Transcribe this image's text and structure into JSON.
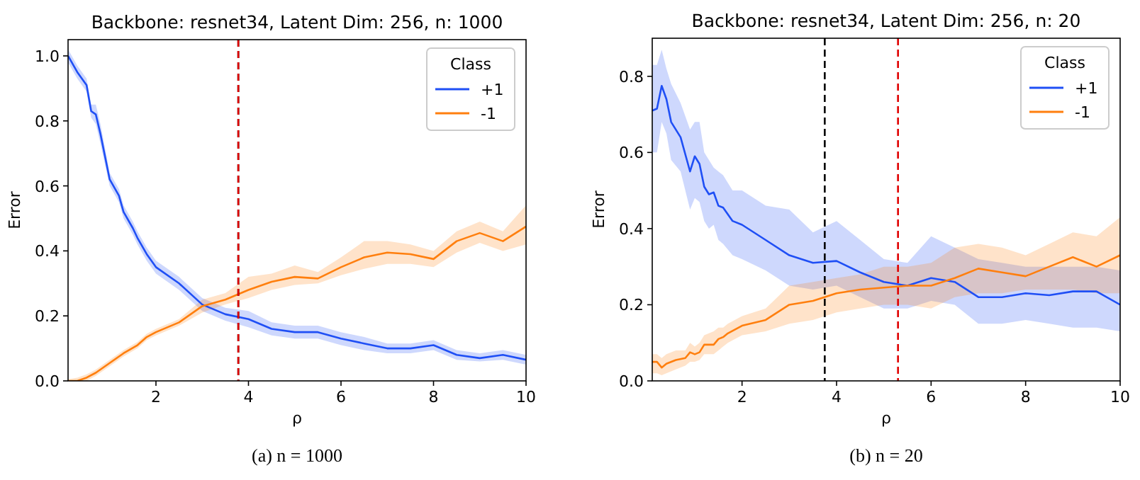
{
  "chart_data": [
    {
      "type": "line",
      "title": "Backbone: resnet34, Latent Dim: 256, n: 1000",
      "xlabel": "ρ",
      "ylabel": "Error",
      "legend_title": "Class",
      "legend": "top right",
      "xlim": [
        0.1,
        10
      ],
      "xticks": [
        2,
        4,
        6,
        8,
        10
      ],
      "ylim": [
        0,
        1.05
      ],
      "yticks": [
        {
          "value": 0,
          "label": "0.0"
        },
        {
          "value": 0.2,
          "label": "0.2"
        },
        {
          "value": 0.4,
          "label": "0.4"
        },
        {
          "value": 0.6,
          "label": "0.6"
        },
        {
          "value": 0.8,
          "label": "0.8"
        },
        {
          "value": 1,
          "label": "1.0"
        }
      ],
      "grid": false,
      "ref_lines": [
        {
          "axis": "x",
          "value": 3.78,
          "color": "#000000",
          "line_style": "dashed"
        },
        {
          "axis": "x",
          "value": 3.78,
          "color": "#e00000",
          "line_style": "dashed"
        }
      ],
      "annotations": [
        "(a) n = 1000"
      ],
      "series": [
        {
          "name": "+1",
          "color": "#1f4ff5",
          "x": [
            0.1,
            0.3,
            0.5,
            0.6,
            0.7,
            0.8,
            1.0,
            1.2,
            1.3,
            1.5,
            1.6,
            1.8,
            2.0,
            2.5,
            3.0,
            3.5,
            4.0,
            4.5,
            5,
            5.5,
            6,
            6.5,
            7,
            7.5,
            8,
            8.5,
            9,
            9.5,
            10
          ],
          "values": [
            1.0,
            0.95,
            0.91,
            0.83,
            0.82,
            0.76,
            0.62,
            0.57,
            0.52,
            0.47,
            0.44,
            0.39,
            0.35,
            0.3,
            0.235,
            0.205,
            0.19,
            0.16,
            0.15,
            0.15,
            0.13,
            0.115,
            0.1,
            0.1,
            0.11,
            0.08,
            0.07,
            0.08,
            0.065
          ],
          "lower": [
            0.98,
            0.93,
            0.89,
            0.81,
            0.79,
            0.73,
            0.6,
            0.55,
            0.5,
            0.45,
            0.42,
            0.37,
            0.33,
            0.28,
            0.215,
            0.185,
            0.165,
            0.14,
            0.13,
            0.13,
            0.11,
            0.095,
            0.085,
            0.085,
            0.095,
            0.065,
            0.06,
            0.065,
            0.05
          ],
          "upper": [
            1.02,
            0.97,
            0.93,
            0.85,
            0.85,
            0.79,
            0.64,
            0.59,
            0.54,
            0.49,
            0.46,
            0.41,
            0.37,
            0.32,
            0.255,
            0.225,
            0.215,
            0.18,
            0.17,
            0.17,
            0.15,
            0.135,
            0.115,
            0.115,
            0.125,
            0.095,
            0.085,
            0.095,
            0.08
          ]
        },
        {
          "name": "-1",
          "color": "#ff7f0e",
          "x": [
            0.1,
            0.3,
            0.5,
            0.7,
            1.0,
            1.3,
            1.6,
            1.8,
            2.0,
            2.5,
            3.0,
            3.5,
            4.0,
            4.5,
            5,
            5.5,
            6,
            6.5,
            7,
            7.5,
            8,
            8.5,
            9,
            9.5,
            10
          ],
          "values": [
            0,
            0,
            0.01,
            0.025,
            0.055,
            0.085,
            0.11,
            0.135,
            0.15,
            0.18,
            0.23,
            0.25,
            0.28,
            0.305,
            0.32,
            0.315,
            0.35,
            0.38,
            0.395,
            0.39,
            0.375,
            0.43,
            0.455,
            0.43,
            0.475
          ],
          "lower": [
            0,
            0,
            0,
            0.015,
            0.045,
            0.075,
            0.1,
            0.125,
            0.14,
            0.17,
            0.21,
            0.235,
            0.255,
            0.28,
            0.295,
            0.3,
            0.325,
            0.345,
            0.36,
            0.36,
            0.35,
            0.395,
            0.425,
            0.4,
            0.42
          ],
          "upper": [
            0.005,
            0.01,
            0.02,
            0.035,
            0.065,
            0.095,
            0.12,
            0.145,
            0.16,
            0.19,
            0.25,
            0.27,
            0.32,
            0.33,
            0.355,
            0.335,
            0.38,
            0.43,
            0.43,
            0.42,
            0.4,
            0.46,
            0.49,
            0.46,
            0.54
          ]
        }
      ]
    },
    {
      "type": "line",
      "title": "Backbone: resnet34, Latent Dim: 256, n: 20",
      "xlabel": "ρ",
      "ylabel": "Error",
      "legend_title": "Class",
      "legend": "top right",
      "xlim": [
        0.1,
        10
      ],
      "xticks": [
        2,
        4,
        6,
        8,
        10
      ],
      "ylim": [
        0,
        0.9
      ],
      "yticks": [
        {
          "value": 0,
          "label": "0.0"
        },
        {
          "value": 0.2,
          "label": "0.2"
        },
        {
          "value": 0.4,
          "label": "0.4"
        },
        {
          "value": 0.6,
          "label": "0.6"
        },
        {
          "value": 0.8,
          "label": "0.8"
        }
      ],
      "grid": false,
      "ref_lines": [
        {
          "axis": "x",
          "value": 3.75,
          "color": "#000000",
          "line_style": "dashed"
        },
        {
          "axis": "x",
          "value": 5.3,
          "color": "#e00000",
          "line_style": "dashed"
        }
      ],
      "annotations": [
        "(b) n = 20"
      ],
      "series": [
        {
          "name": "+1",
          "color": "#1f4ff5",
          "x": [
            0.1,
            0.2,
            0.3,
            0.4,
            0.5,
            0.7,
            0.9,
            1.0,
            1.1,
            1.2,
            1.3,
            1.4,
            1.5,
            1.6,
            1.8,
            2.0,
            2.5,
            3.0,
            3.5,
            4.0,
            4.5,
            5,
            5.5,
            6,
            6.5,
            7,
            7.5,
            8,
            8.5,
            9,
            9.5,
            10
          ],
          "values": [
            0.71,
            0.715,
            0.775,
            0.74,
            0.68,
            0.64,
            0.55,
            0.59,
            0.57,
            0.51,
            0.49,
            0.495,
            0.46,
            0.455,
            0.42,
            0.41,
            0.37,
            0.33,
            0.31,
            0.315,
            0.285,
            0.26,
            0.25,
            0.27,
            0.26,
            0.22,
            0.22,
            0.23,
            0.225,
            0.235,
            0.235,
            0.2
          ],
          "lower": [
            0.6,
            0.6,
            0.68,
            0.65,
            0.58,
            0.55,
            0.45,
            0.48,
            0.47,
            0.42,
            0.4,
            0.41,
            0.37,
            0.36,
            0.33,
            0.32,
            0.29,
            0.25,
            0.24,
            0.25,
            0.22,
            0.19,
            0.19,
            0.21,
            0.2,
            0.15,
            0.15,
            0.16,
            0.15,
            0.14,
            0.14,
            0.13
          ],
          "upper": [
            0.83,
            0.83,
            0.87,
            0.82,
            0.78,
            0.73,
            0.66,
            0.68,
            0.68,
            0.6,
            0.58,
            0.56,
            0.55,
            0.54,
            0.5,
            0.5,
            0.46,
            0.45,
            0.39,
            0.42,
            0.37,
            0.32,
            0.31,
            0.38,
            0.35,
            0.32,
            0.31,
            0.3,
            0.3,
            0.3,
            0.3,
            0.29
          ]
        },
        {
          "name": "-1",
          "color": "#ff7f0e",
          "x": [
            0.1,
            0.2,
            0.3,
            0.4,
            0.6,
            0.8,
            0.9,
            1.0,
            1.1,
            1.2,
            1.4,
            1.5,
            1.6,
            1.7,
            2.0,
            2.5,
            3.0,
            3.5,
            4,
            4.5,
            5,
            5.5,
            6,
            6.5,
            7,
            7.5,
            8,
            8.5,
            9,
            9.5,
            10
          ],
          "values": [
            0.05,
            0.05,
            0.035,
            0.045,
            0.055,
            0.06,
            0.075,
            0.07,
            0.075,
            0.095,
            0.095,
            0.11,
            0.115,
            0.125,
            0.145,
            0.16,
            0.2,
            0.21,
            0.23,
            0.24,
            0.245,
            0.25,
            0.25,
            0.27,
            0.295,
            0.285,
            0.275,
            0.3,
            0.325,
            0.3,
            0.33
          ],
          "lower": [
            0.02,
            0.02,
            0.015,
            0.02,
            0.03,
            0.04,
            0.05,
            0.05,
            0.055,
            0.07,
            0.07,
            0.08,
            0.09,
            0.1,
            0.12,
            0.13,
            0.15,
            0.16,
            0.18,
            0.19,
            0.2,
            0.2,
            0.19,
            0.22,
            0.23,
            0.23,
            0.24,
            0.24,
            0.24,
            0.23,
            0.23
          ],
          "upper": [
            0.07,
            0.07,
            0.06,
            0.07,
            0.08,
            0.08,
            0.1,
            0.09,
            0.1,
            0.12,
            0.13,
            0.14,
            0.14,
            0.15,
            0.17,
            0.19,
            0.25,
            0.26,
            0.27,
            0.28,
            0.3,
            0.3,
            0.31,
            0.35,
            0.36,
            0.35,
            0.33,
            0.36,
            0.39,
            0.38,
            0.43
          ]
        }
      ]
    }
  ]
}
